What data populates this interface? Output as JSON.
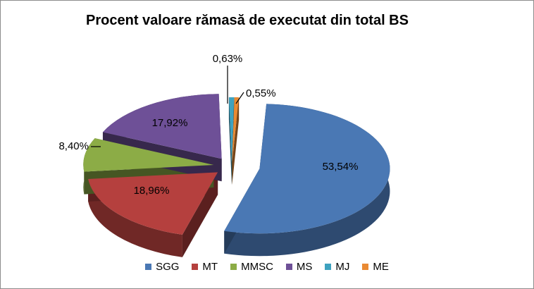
{
  "chart_data": {
    "type": "pie",
    "title": "Procent valoare rămasă de executat din total BS",
    "categories": [
      "SGG",
      "MT",
      "MMSC",
      "MS",
      "MJ",
      "ME"
    ],
    "values": [
      53.54,
      18.96,
      8.4,
      17.92,
      0.63,
      0.55
    ],
    "data_labels": [
      "53,54%",
      "18,96%",
      "8,40%",
      "17,92%",
      "0,63%",
      "0,55%"
    ],
    "colors": [
      "#4a78b4",
      "#b5403e",
      "#8cac46",
      "#6e5097",
      "#3ea2bf",
      "#e98a33"
    ],
    "exploded": true,
    "three_d": true,
    "legend": "bottom"
  }
}
